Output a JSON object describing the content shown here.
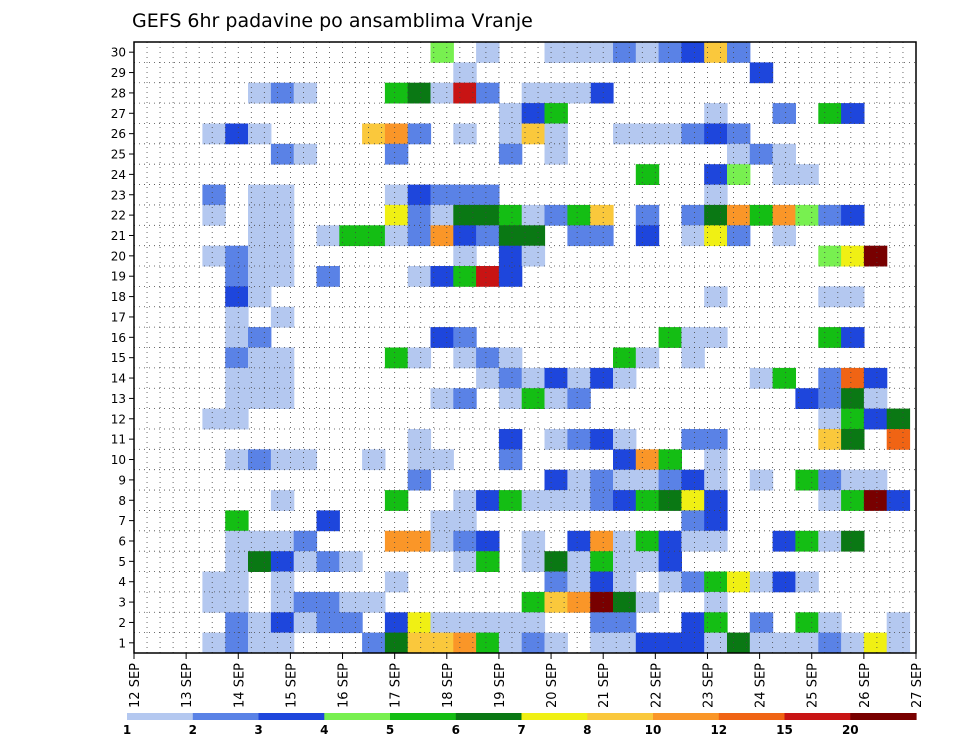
{
  "chart_data": {
    "type": "heatmap",
    "title": "GEFS 6hr padavine po ansamblima Vranje",
    "xlabel": "",
    "ylabel": "",
    "x_ticks": [
      "12 SEP",
      "13 SEP",
      "14 SEP",
      "15 SEP",
      "16 SEP",
      "17 SEP",
      "18 SEP",
      "19 SEP",
      "20 SEP",
      "21 SEP",
      "22 SEP",
      "23 SEP",
      "24 SEP",
      "25 SEP",
      "26 SEP",
      "27 SEP"
    ],
    "y_ticks": [
      "1",
      "2",
      "3",
      "4",
      "5",
      "6",
      "7",
      "8",
      "9",
      "10",
      "11",
      "12",
      "13",
      "14",
      "15",
      "16",
      "17",
      "18",
      "19",
      "20",
      "21",
      "22",
      "23",
      "24",
      "25",
      "26",
      "27",
      "28",
      "29",
      "30"
    ],
    "y_range": [
      1,
      30
    ],
    "grid": true,
    "colorbar": {
      "labels": [
        "1",
        "2",
        "3",
        "4",
        "5",
        "6",
        "7",
        "8",
        "10",
        "12",
        "15",
        "20"
      ],
      "colors": [
        "#b4c8f0",
        "#5a82e6",
        "#1e46dc",
        "#78f050",
        "#14be14",
        "#0a7814",
        "#f0f014",
        "#fac83c",
        "#fa9628",
        "#f06414",
        "#c81414",
        "#780000"
      ]
    },
    "grid_cols": 60,
    "grid_rows": 30,
    "cells": [
      [
        13,
        30,
        4
      ],
      [
        15,
        30,
        1
      ],
      [
        18,
        30,
        1
      ],
      [
        18,
        30,
        1
      ],
      [
        19,
        30,
        1
      ],
      [
        20,
        30,
        1
      ],
      [
        21,
        30,
        2
      ],
      [
        23,
        30,
        1
      ],
      [
        22,
        30,
        1
      ],
      [
        23,
        30,
        2
      ],
      [
        24,
        30,
        3
      ],
      [
        25,
        30,
        8
      ],
      [
        26,
        30,
        2
      ],
      [
        27,
        29,
        3
      ],
      [
        14,
        29,
        1
      ],
      [
        5,
        28,
        1
      ],
      [
        6,
        28,
        2
      ],
      [
        7,
        28,
        1
      ],
      [
        11,
        28,
        5
      ],
      [
        12,
        28,
        6
      ],
      [
        13,
        28,
        1
      ],
      [
        14,
        28,
        11
      ],
      [
        15,
        28,
        2
      ],
      [
        17,
        28,
        1
      ],
      [
        18,
        28,
        1
      ],
      [
        20,
        28,
        3
      ],
      [
        19,
        28,
        1
      ],
      [
        25,
        27,
        1
      ],
      [
        28,
        27,
        2
      ],
      [
        30,
        27,
        5
      ],
      [
        31,
        27,
        3
      ],
      [
        16,
        27,
        1
      ],
      [
        17,
        27,
        3
      ],
      [
        18,
        27,
        5
      ],
      [
        3,
        26,
        1
      ],
      [
        4,
        26,
        3
      ],
      [
        5,
        26,
        1
      ],
      [
        10,
        26,
        8
      ],
      [
        11,
        26,
        9
      ],
      [
        12,
        26,
        2
      ],
      [
        14,
        26,
        1
      ],
      [
        16,
        26,
        1
      ],
      [
        17,
        26,
        8
      ],
      [
        18,
        26,
        1
      ],
      [
        21,
        26,
        1
      ],
      [
        22,
        26,
        1
      ],
      [
        23,
        26,
        1
      ],
      [
        24,
        26,
        2
      ],
      [
        25,
        26,
        3
      ],
      [
        26,
        26,
        2
      ],
      [
        6,
        25,
        2
      ],
      [
        7,
        25,
        1
      ],
      [
        11,
        25,
        2
      ],
      [
        16,
        25,
        2
      ],
      [
        18,
        25,
        1
      ],
      [
        26,
        25,
        1
      ],
      [
        27,
        25,
        2
      ],
      [
        28,
        25,
        1
      ],
      [
        22,
        24,
        5
      ],
      [
        25,
        24,
        3
      ],
      [
        26,
        24,
        4
      ],
      [
        28,
        24,
        1
      ],
      [
        29,
        24,
        1
      ],
      [
        3,
        23,
        2
      ],
      [
        5,
        23,
        1
      ],
      [
        6,
        23,
        1
      ],
      [
        11,
        23,
        1
      ],
      [
        12,
        23,
        3
      ],
      [
        13,
        23,
        2
      ],
      [
        14,
        23,
        2
      ],
      [
        15,
        23,
        2
      ],
      [
        25,
        23,
        1
      ],
      [
        3,
        22,
        1
      ],
      [
        5,
        22,
        1
      ],
      [
        6,
        22,
        1
      ],
      [
        11,
        22,
        7
      ],
      [
        12,
        22,
        2
      ],
      [
        13,
        22,
        1
      ],
      [
        14,
        22,
        6
      ],
      [
        15,
        22,
        6
      ],
      [
        16,
        22,
        5
      ],
      [
        17,
        22,
        1
      ],
      [
        18,
        22,
        2
      ],
      [
        19,
        22,
        5
      ],
      [
        20,
        22,
        8
      ],
      [
        22,
        22,
        2
      ],
      [
        24,
        22,
        2
      ],
      [
        25,
        22,
        6
      ],
      [
        26,
        22,
        9
      ],
      [
        27,
        22,
        5
      ],
      [
        28,
        22,
        9
      ],
      [
        29,
        22,
        4
      ],
      [
        30,
        22,
        2
      ],
      [
        31,
        22,
        3
      ],
      [
        5,
        21,
        1
      ],
      [
        6,
        21,
        1
      ],
      [
        8,
        21,
        1
      ],
      [
        9,
        21,
        5
      ],
      [
        10,
        21,
        5
      ],
      [
        11,
        21,
        1
      ],
      [
        12,
        21,
        2
      ],
      [
        13,
        21,
        9
      ],
      [
        14,
        21,
        3
      ],
      [
        15,
        21,
        2
      ],
      [
        16,
        21,
        6
      ],
      [
        17,
        21,
        6
      ],
      [
        19,
        21,
        2
      ],
      [
        20,
        21,
        2
      ],
      [
        22,
        21,
        3
      ],
      [
        24,
        21,
        1
      ],
      [
        25,
        21,
        7
      ],
      [
        26,
        21,
        2
      ],
      [
        28,
        21,
        1
      ],
      [
        3,
        20,
        1
      ],
      [
        4,
        20,
        2
      ],
      [
        5,
        20,
        1
      ],
      [
        6,
        20,
        1
      ],
      [
        14,
        20,
        1
      ],
      [
        16,
        20,
        3
      ],
      [
        17,
        20,
        1
      ],
      [
        30,
        20,
        4
      ],
      [
        31,
        20,
        7
      ],
      [
        32,
        20,
        12
      ],
      [
        4,
        19,
        2
      ],
      [
        5,
        19,
        1
      ],
      [
        6,
        19,
        1
      ],
      [
        8,
        19,
        2
      ],
      [
        12,
        19,
        1
      ],
      [
        13,
        19,
        3
      ],
      [
        14,
        19,
        5
      ],
      [
        15,
        19,
        11
      ],
      [
        16,
        19,
        3
      ],
      [
        4,
        18,
        3
      ],
      [
        5,
        18,
        1
      ],
      [
        25,
        18,
        1
      ],
      [
        30,
        18,
        1
      ],
      [
        31,
        18,
        1
      ],
      [
        4,
        17,
        1
      ],
      [
        6,
        17,
        1
      ],
      [
        4,
        16,
        1
      ],
      [
        5,
        16,
        2
      ],
      [
        13,
        16,
        3
      ],
      [
        14,
        16,
        2
      ],
      [
        23,
        16,
        5
      ],
      [
        24,
        16,
        1
      ],
      [
        25,
        16,
        1
      ],
      [
        30,
        16,
        5
      ],
      [
        31,
        16,
        3
      ],
      [
        4,
        15,
        2
      ],
      [
        5,
        15,
        1
      ],
      [
        6,
        15,
        1
      ],
      [
        11,
        15,
        5
      ],
      [
        12,
        15,
        1
      ],
      [
        14,
        15,
        1
      ],
      [
        15,
        15,
        2
      ],
      [
        16,
        15,
        1
      ],
      [
        21,
        15,
        5
      ],
      [
        22,
        15,
        1
      ],
      [
        24,
        15,
        1
      ],
      [
        4,
        14,
        1
      ],
      [
        5,
        14,
        1
      ],
      [
        6,
        14,
        1
      ],
      [
        15,
        14,
        1
      ],
      [
        16,
        14,
        2
      ],
      [
        17,
        14,
        1
      ],
      [
        18,
        14,
        3
      ],
      [
        19,
        14,
        1
      ],
      [
        20,
        14,
        3
      ],
      [
        21,
        14,
        1
      ],
      [
        27,
        14,
        1
      ],
      [
        28,
        14,
        5
      ],
      [
        30,
        14,
        2
      ],
      [
        31,
        14,
        10
      ],
      [
        32,
        14,
        3
      ],
      [
        4,
        13,
        1
      ],
      [
        5,
        13,
        1
      ],
      [
        6,
        13,
        1
      ],
      [
        13,
        13,
        1
      ],
      [
        14,
        13,
        2
      ],
      [
        16,
        13,
        1
      ],
      [
        17,
        13,
        5
      ],
      [
        18,
        13,
        1
      ],
      [
        19,
        13,
        2
      ],
      [
        29,
        13,
        3
      ],
      [
        30,
        13,
        2
      ],
      [
        31,
        13,
        6
      ],
      [
        32,
        13,
        1
      ],
      [
        3,
        12,
        1
      ],
      [
        4,
        12,
        1
      ],
      [
        30,
        12,
        1
      ],
      [
        31,
        12,
        5
      ],
      [
        32,
        12,
        3
      ],
      [
        33,
        12,
        6
      ],
      [
        12,
        11,
        1
      ],
      [
        16,
        11,
        3
      ],
      [
        18,
        11,
        1
      ],
      [
        19,
        11,
        2
      ],
      [
        20,
        11,
        3
      ],
      [
        21,
        11,
        1
      ],
      [
        24,
        11,
        2
      ],
      [
        25,
        11,
        2
      ],
      [
        30,
        11,
        8
      ],
      [
        31,
        11,
        6
      ],
      [
        33,
        11,
        10
      ],
      [
        4,
        10,
        1
      ],
      [
        5,
        10,
        2
      ],
      [
        6,
        10,
        1
      ],
      [
        7,
        10,
        1
      ],
      [
        10,
        10,
        1
      ],
      [
        12,
        10,
        1
      ],
      [
        13,
        10,
        1
      ],
      [
        16,
        10,
        2
      ],
      [
        21,
        10,
        3
      ],
      [
        22,
        10,
        9
      ],
      [
        23,
        10,
        5
      ],
      [
        25,
        10,
        1
      ],
      [
        12,
        9,
        2
      ],
      [
        18,
        9,
        3
      ],
      [
        19,
        9,
        1
      ],
      [
        20,
        9,
        2
      ],
      [
        21,
        9,
        1
      ],
      [
        22,
        9,
        1
      ],
      [
        23,
        9,
        2
      ],
      [
        24,
        9,
        3
      ],
      [
        25,
        9,
        1
      ],
      [
        27,
        9,
        1
      ],
      [
        29,
        9,
        5
      ],
      [
        30,
        9,
        2
      ],
      [
        31,
        9,
        1
      ],
      [
        32,
        9,
        1
      ],
      [
        6,
        8,
        1
      ],
      [
        11,
        8,
        5
      ],
      [
        14,
        8,
        1
      ],
      [
        15,
        8,
        3
      ],
      [
        16,
        8,
        5
      ],
      [
        17,
        8,
        1
      ],
      [
        18,
        8,
        1
      ],
      [
        19,
        8,
        1
      ],
      [
        20,
        8,
        2
      ],
      [
        21,
        8,
        3
      ],
      [
        22,
        8,
        5
      ],
      [
        23,
        8,
        6
      ],
      [
        24,
        8,
        7
      ],
      [
        25,
        8,
        3
      ],
      [
        30,
        8,
        1
      ],
      [
        31,
        8,
        5
      ],
      [
        32,
        8,
        12
      ],
      [
        33,
        8,
        3
      ],
      [
        4,
        7,
        5
      ],
      [
        8,
        7,
        3
      ],
      [
        13,
        7,
        1
      ],
      [
        14,
        7,
        1
      ],
      [
        24,
        7,
        2
      ],
      [
        25,
        7,
        3
      ],
      [
        4,
        6,
        1
      ],
      [
        5,
        6,
        1
      ],
      [
        6,
        6,
        1
      ],
      [
        7,
        6,
        2
      ],
      [
        11,
        6,
        9
      ],
      [
        12,
        6,
        9
      ],
      [
        13,
        6,
        1
      ],
      [
        14,
        6,
        2
      ],
      [
        15,
        6,
        3
      ],
      [
        17,
        6,
        1
      ],
      [
        19,
        6,
        3
      ],
      [
        20,
        6,
        9
      ],
      [
        21,
        6,
        1
      ],
      [
        22,
        6,
        5
      ],
      [
        23,
        6,
        3
      ],
      [
        24,
        6,
        1
      ],
      [
        25,
        6,
        1
      ],
      [
        28,
        6,
        3
      ],
      [
        29,
        6,
        5
      ],
      [
        30,
        6,
        1
      ],
      [
        31,
        6,
        6
      ],
      [
        4,
        5,
        1
      ],
      [
        5,
        5,
        6
      ],
      [
        6,
        5,
        3
      ],
      [
        7,
        5,
        1
      ],
      [
        8,
        5,
        2
      ],
      [
        9,
        5,
        1
      ],
      [
        14,
        5,
        1
      ],
      [
        15,
        5,
        5
      ],
      [
        17,
        5,
        1
      ],
      [
        18,
        5,
        6
      ],
      [
        19,
        5,
        1
      ],
      [
        20,
        5,
        5
      ],
      [
        21,
        5,
        1
      ],
      [
        22,
        5,
        1
      ],
      [
        23,
        5,
        3
      ],
      [
        3,
        4,
        1
      ],
      [
        4,
        4,
        1
      ],
      [
        6,
        4,
        1
      ],
      [
        11,
        4,
        1
      ],
      [
        18,
        4,
        2
      ],
      [
        19,
        4,
        1
      ],
      [
        20,
        4,
        3
      ],
      [
        21,
        4,
        1
      ],
      [
        23,
        4,
        1
      ],
      [
        24,
        4,
        2
      ],
      [
        25,
        4,
        5
      ],
      [
        26,
        4,
        7
      ],
      [
        27,
        4,
        1
      ],
      [
        28,
        4,
        3
      ],
      [
        29,
        4,
        1
      ],
      [
        3,
        3,
        1
      ],
      [
        4,
        3,
        1
      ],
      [
        6,
        3,
        1
      ],
      [
        7,
        3,
        2
      ],
      [
        8,
        3,
        2
      ],
      [
        9,
        3,
        1
      ],
      [
        10,
        3,
        1
      ],
      [
        17,
        3,
        5
      ],
      [
        18,
        3,
        8
      ],
      [
        19,
        3,
        9
      ],
      [
        20,
        3,
        12
      ],
      [
        21,
        3,
        6
      ],
      [
        22,
        3,
        1
      ],
      [
        25,
        3,
        1
      ],
      [
        4,
        2,
        2
      ],
      [
        5,
        2,
        1
      ],
      [
        6,
        2,
        3
      ],
      [
        7,
        2,
        1
      ],
      [
        8,
        2,
        2
      ],
      [
        9,
        2,
        2
      ],
      [
        11,
        2,
        3
      ],
      [
        12,
        2,
        7
      ],
      [
        13,
        2,
        1
      ],
      [
        14,
        2,
        1
      ],
      [
        15,
        2,
        1
      ],
      [
        16,
        2,
        1
      ],
      [
        17,
        2,
        1
      ],
      [
        20,
        2,
        2
      ],
      [
        21,
        2,
        2
      ],
      [
        24,
        2,
        3
      ],
      [
        25,
        2,
        5
      ],
      [
        27,
        2,
        2
      ],
      [
        29,
        2,
        5
      ],
      [
        30,
        2,
        1
      ],
      [
        33,
        2,
        1
      ],
      [
        3,
        1,
        1
      ],
      [
        4,
        1,
        2
      ],
      [
        5,
        1,
        1
      ],
      [
        6,
        1,
        1
      ],
      [
        10,
        1,
        2
      ],
      [
        11,
        1,
        6
      ],
      [
        12,
        1,
        8
      ],
      [
        13,
        1,
        8
      ],
      [
        14,
        1,
        9
      ],
      [
        15,
        1,
        5
      ],
      [
        16,
        1,
        1
      ],
      [
        17,
        1,
        2
      ],
      [
        18,
        1,
        1
      ],
      [
        20,
        1,
        1
      ],
      [
        21,
        1,
        1
      ],
      [
        22,
        1,
        3
      ],
      [
        23,
        1,
        3
      ],
      [
        24,
        1,
        3
      ],
      [
        25,
        1,
        1
      ],
      [
        26,
        1,
        6
      ],
      [
        27,
        1,
        1
      ],
      [
        28,
        1,
        1
      ],
      [
        29,
        1,
        1
      ],
      [
        30,
        1,
        2
      ],
      [
        31,
        1,
        1
      ],
      [
        32,
        1,
        7
      ],
      [
        33,
        1,
        1
      ]
    ]
  }
}
